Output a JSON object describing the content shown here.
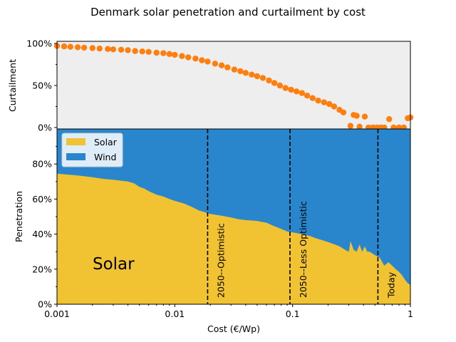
{
  "title": "Denmark solar penetration and curtailment by cost",
  "colors": {
    "solar": "#f1c232",
    "wind": "#2986cc",
    "curtailment": "#ff7f0e",
    "top_panel_bg": "#eeeeee",
    "lines": "#000000"
  },
  "chart_data": [
    {
      "type": "scatter",
      "panel": "top",
      "title": "",
      "ylabel": "Curtailment",
      "xscale": "log",
      "xlim": [
        0.001,
        1
      ],
      "ylim": [
        0,
        1
      ],
      "yticks": [
        "0%",
        "50%",
        "100%"
      ],
      "grid": false,
      "series": [
        {
          "x": [
            0.001,
            0.00115,
            0.0013,
            0.0015,
            0.0017,
            0.002,
            0.0023,
            0.0027,
            0.003,
            0.0035,
            0.004,
            0.0046,
            0.0053,
            0.006,
            0.007,
            0.008,
            0.009,
            0.01,
            0.0115,
            0.013,
            0.015,
            0.017,
            0.019,
            0.022,
            0.025,
            0.028,
            0.032,
            0.036,
            0.04,
            0.045,
            0.05,
            0.056,
            0.063,
            0.07,
            0.078,
            0.087,
            0.097,
            0.108,
            0.12,
            0.133,
            0.148,
            0.165,
            0.185,
            0.205,
            0.225,
            0.25,
            0.27,
            0.31,
            0.33,
            0.35,
            0.37,
            0.41,
            0.44,
            0.48,
            0.52,
            0.56,
            0.6,
            0.66,
            0.72,
            0.8,
            0.88,
            0.95,
            1.0
          ],
          "y": [
            0.97,
            0.965,
            0.96,
            0.955,
            0.95,
            0.945,
            0.94,
            0.935,
            0.93,
            0.925,
            0.92,
            0.91,
            0.905,
            0.9,
            0.89,
            0.885,
            0.875,
            0.865,
            0.85,
            0.835,
            0.82,
            0.8,
            0.785,
            0.76,
            0.74,
            0.715,
            0.69,
            0.67,
            0.65,
            0.63,
            0.61,
            0.59,
            0.56,
            0.53,
            0.5,
            0.47,
            0.45,
            0.43,
            0.41,
            0.38,
            0.35,
            0.32,
            0.3,
            0.28,
            0.25,
            0.21,
            0.18,
            0.02,
            0.15,
            0.14,
            0.01,
            0.13,
            0.0,
            0.0,
            0.0,
            0.0,
            0.0,
            0.1,
            0.0,
            0.0,
            0.0,
            0.11,
            0.12
          ]
        }
      ]
    },
    {
      "type": "area",
      "panel": "bottom",
      "title": "",
      "xlabel": "Cost (€/Wp)",
      "ylabel": "Penetration",
      "xscale": "log",
      "xlim": [
        0.001,
        1
      ],
      "ylim": [
        0,
        1
      ],
      "xticks": [
        "0.001",
        "0.01",
        "0.1",
        "1"
      ],
      "yticks": [
        "0%",
        "20%",
        "40%",
        "60%",
        "80%"
      ],
      "grid": false,
      "legend": {
        "placement": "upper-left",
        "entries": [
          "Solar",
          "Wind"
        ]
      },
      "x": [
        0.001,
        0.0015,
        0.002,
        0.0025,
        0.003,
        0.0035,
        0.004,
        0.0045,
        0.005,
        0.0055,
        0.006,
        0.007,
        0.008,
        0.009,
        0.01,
        0.012,
        0.014,
        0.016,
        0.018,
        0.02,
        0.025,
        0.03,
        0.035,
        0.04,
        0.05,
        0.06,
        0.07,
        0.08,
        0.09,
        0.1,
        0.12,
        0.14,
        0.16,
        0.18,
        0.2,
        0.22,
        0.25,
        0.28,
        0.3,
        0.31,
        0.33,
        0.35,
        0.37,
        0.39,
        0.41,
        0.43,
        0.45,
        0.5,
        0.55,
        0.6,
        0.65,
        0.7,
        0.75,
        0.8,
        0.85,
        0.9,
        0.95,
        1.0
      ],
      "series": [
        {
          "name": "Solar",
          "values": [
            0.745,
            0.735,
            0.725,
            0.715,
            0.71,
            0.705,
            0.7,
            0.69,
            0.67,
            0.66,
            0.645,
            0.625,
            0.615,
            0.6,
            0.59,
            0.575,
            0.555,
            0.535,
            0.525,
            0.515,
            0.505,
            0.495,
            0.485,
            0.48,
            0.475,
            0.465,
            0.445,
            0.43,
            0.415,
            0.41,
            0.4,
            0.39,
            0.375,
            0.365,
            0.355,
            0.345,
            0.33,
            0.31,
            0.3,
            0.36,
            0.31,
            0.3,
            0.34,
            0.3,
            0.33,
            0.3,
            0.3,
            0.28,
            0.265,
            0.22,
            0.24,
            0.22,
            0.2,
            0.185,
            0.165,
            0.14,
            0.12,
            0.11
          ]
        },
        {
          "name": "Wind",
          "values": [
            0.255,
            0.265,
            0.275,
            0.285,
            0.29,
            0.295,
            0.3,
            0.31,
            0.33,
            0.34,
            0.355,
            0.375,
            0.385,
            0.4,
            0.41,
            0.425,
            0.445,
            0.465,
            0.475,
            0.485,
            0.495,
            0.505,
            0.515,
            0.52,
            0.525,
            0.535,
            0.555,
            0.57,
            0.585,
            0.59,
            0.6,
            0.61,
            0.625,
            0.635,
            0.645,
            0.655,
            0.67,
            0.69,
            0.7,
            0.64,
            0.69,
            0.7,
            0.66,
            0.7,
            0.67,
            0.7,
            0.7,
            0.72,
            0.735,
            0.78,
            0.76,
            0.78,
            0.8,
            0.815,
            0.835,
            0.86,
            0.88,
            0.89
          ]
        }
      ],
      "annotations": [
        {
          "label": "2050--Optimistic",
          "x": 0.019
        },
        {
          "label": "2050--Less Optimistic",
          "x": 0.095
        },
        {
          "label": "Today",
          "x": 0.53
        }
      ],
      "region_label": "Solar"
    }
  ]
}
